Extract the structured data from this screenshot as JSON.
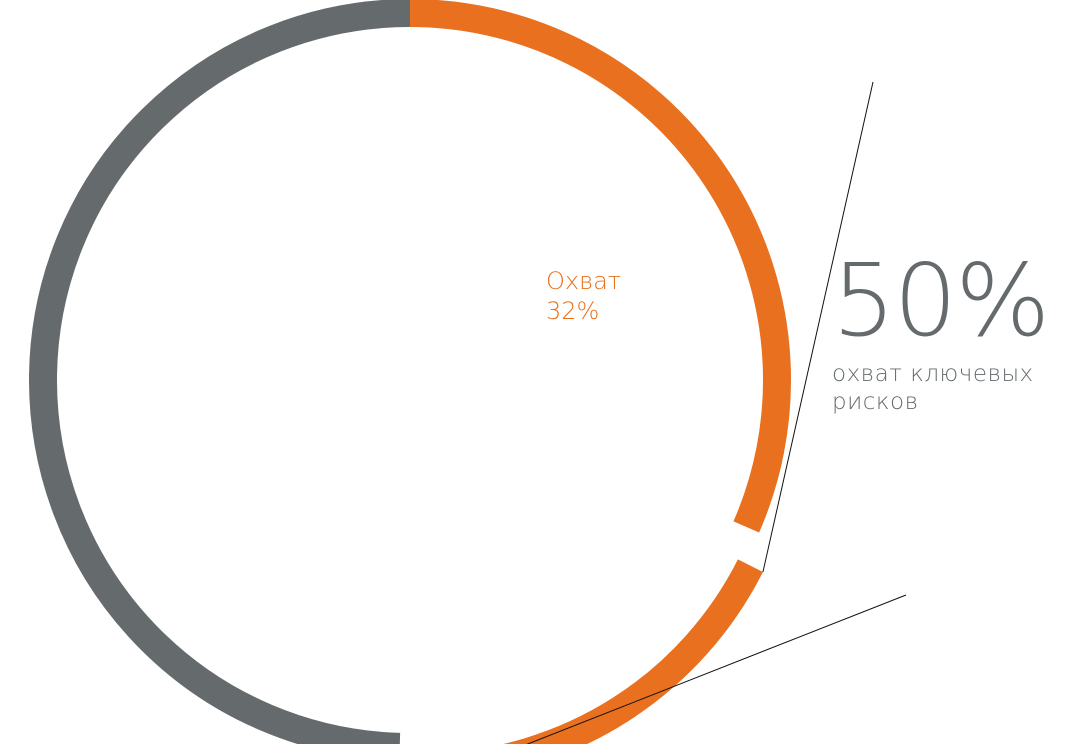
{
  "colors": {
    "accent": "#e8701f",
    "neutral": "#656b6d",
    "leader": "#111111",
    "background": "#ffffff"
  },
  "chart_data": {
    "type": "pie",
    "style": "donut-ring",
    "slices": [
      {
        "label": "Охват",
        "value": 32,
        "color": "#e8701f",
        "exploded": false
      },
      {
        "label": "",
        "value": 18,
        "color": "#e8701f",
        "exploded": true
      },
      {
        "label": "",
        "value": 50,
        "color": "#656b6d",
        "exploded": false
      }
    ],
    "inner_label": {
      "name": "Охват",
      "value": "32%"
    },
    "callout": {
      "value": "50%",
      "caption_line1": "охват ключевых",
      "caption_line2": "рисков"
    }
  }
}
